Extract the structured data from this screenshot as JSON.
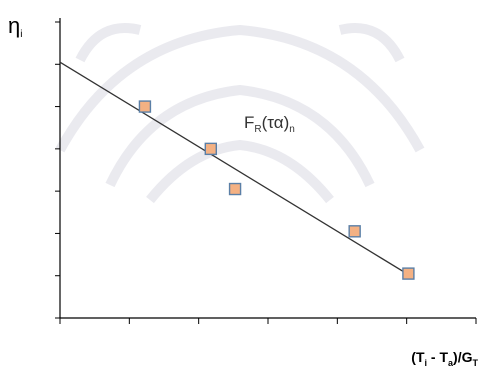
{
  "chart_data": {
    "type": "scatter",
    "title": "",
    "ylabel": "η",
    "ylabel_sub": "i",
    "xlabel_parts": [
      "(T",
      "i",
      " - T",
      "a",
      ")/G",
      "T"
    ],
    "annotation_parts": [
      "F",
      "R",
      "(τα)",
      "n"
    ],
    "points": [
      {
        "x": 2.45,
        "y": 5.0
      },
      {
        "x": 4.35,
        "y": 4.0
      },
      {
        "x": 5.05,
        "y": 3.05
      },
      {
        "x": 8.5,
        "y": 2.05
      },
      {
        "x": 10.05,
        "y": 1.05
      }
    ],
    "fit_line": {
      "x": [
        0,
        10.1
      ],
      "y": [
        6.05,
        1.0
      ]
    },
    "xlim": [
      0,
      12
    ],
    "ylim": [
      0,
      7
    ],
    "x_tick_count": 6,
    "y_tick_count": 7,
    "grid": false,
    "colors": {
      "marker_fill": "#f4b183",
      "marker_edge": "#5b7fa6",
      "line": "#333333",
      "axis": "#000000"
    }
  }
}
